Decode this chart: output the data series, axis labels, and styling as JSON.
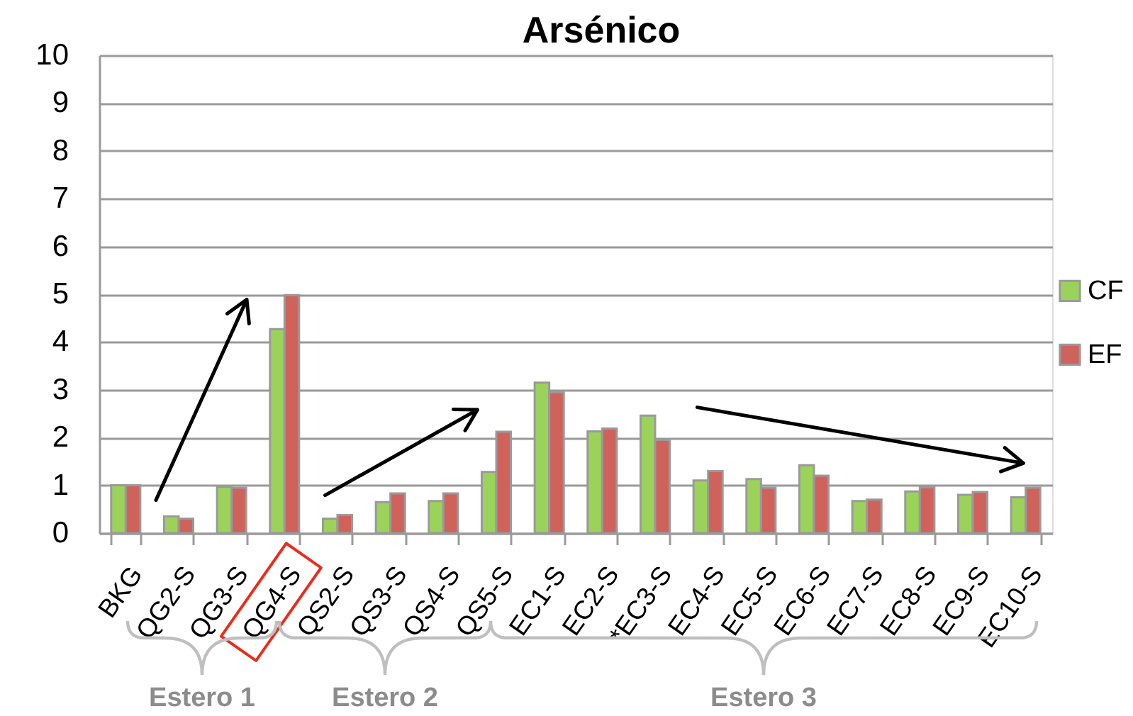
{
  "chart_data": {
    "type": "bar",
    "title": "Arsénico",
    "categories": [
      "BKG",
      "QG2-S",
      "QG3-S",
      "QG4-S",
      "QS2-S",
      "QS3-S",
      "QS4-S",
      "QS5-S",
      "EC1-S",
      "EC2-S",
      "*EC3-S",
      "EC4-S",
      "EC5-S",
      "EC6-S",
      "EC7-S",
      "EC8-S",
      "EC9-S",
      "EC10-S"
    ],
    "series": [
      {
        "name": "CF",
        "color": "#9bd35a",
        "values": [
          1.0,
          0.35,
          0.97,
          4.27,
          0.3,
          0.65,
          0.67,
          1.28,
          3.15,
          2.13,
          2.46,
          1.1,
          1.13,
          1.42,
          0.67,
          0.87,
          0.8,
          0.75
        ]
      },
      {
        "name": "EF",
        "color": "#d0625c",
        "values": [
          1.0,
          0.3,
          0.95,
          4.98,
          0.38,
          0.83,
          0.83,
          2.12,
          2.95,
          2.19,
          1.95,
          1.3,
          0.95,
          1.2,
          0.7,
          0.96,
          0.86,
          0.95
        ]
      }
    ],
    "ylim": [
      0,
      10
    ],
    "yticks": [
      0,
      1,
      2,
      3,
      4,
      5,
      6,
      7,
      8,
      9,
      10
    ],
    "grid": "y",
    "legend": "right",
    "annotations": [
      "Estero 1",
      "Estero 2",
      "Estero 3"
    ]
  }
}
